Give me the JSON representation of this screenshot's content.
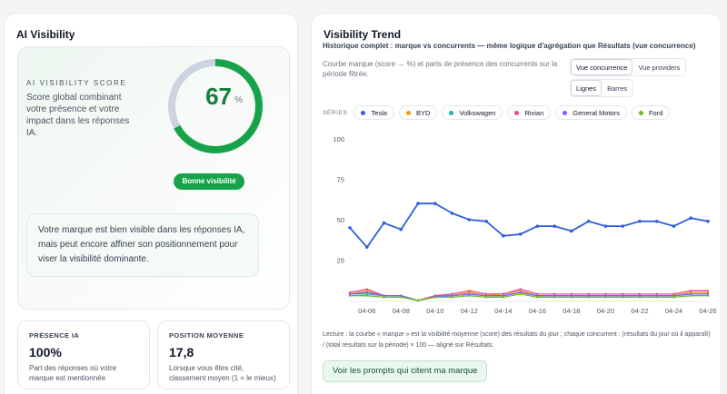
{
  "left": {
    "title": "AI Visibility",
    "score_label": "AI VISIBILITY SCORE",
    "score_desc": "Score global combinant votre présence et votre impact dans les réponses IA.",
    "score_value": 67,
    "score_unit": "%",
    "badge": "Bonne visibilité",
    "note": "Votre marque est bien visible dans les réponses IA, mais peut encore affiner son positionnement pour viser la visibilité dominante.",
    "stats": [
      {
        "title": "PRÉSENCE IA",
        "value": "100%",
        "desc": "Part des réponses où votre marque est mentionnée"
      },
      {
        "title": "POSITION MOYENNE",
        "value": "17,8",
        "desc": "Lorsque vous êtes cité, classement moyen (1 = le mieux)"
      }
    ]
  },
  "right": {
    "title": "Visibility Trend",
    "subtitle": "Historique complet : marque vs concurrents — même logique d'agrégation que Résultats (vue concurrence)",
    "helper": "Courbe marque (score → %) et parts de présence des concurrents sur la période filtrée.",
    "view_buttons": [
      "Vue concurrence",
      "Vue providers"
    ],
    "type_buttons": [
      "Lignes",
      "Barres"
    ],
    "series_title": "SÉRIES",
    "series_chips": [
      {
        "name": "Tesla",
        "color": "#2f5fd9"
      },
      {
        "name": "BYD",
        "color": "#f59e0b"
      },
      {
        "name": "Volkswagen",
        "color": "#14b8a6"
      },
      {
        "name": "Rivian",
        "color": "#ec4899"
      },
      {
        "name": "General Motors",
        "color": "#8b5cf6"
      },
      {
        "name": "Ford",
        "color": "#65c21a"
      }
    ],
    "lecture": "Lecture : la courbe « marque » est la visibilité moyenne (score) des résultats du jour ; chaque concurrent : (résultats du jour où il apparaît) / (total résultats sur la période) × 100 — aligné sur Résultats.",
    "cta": "Voir les prompts qui citent ma marque"
  },
  "chart_data": {
    "type": "line",
    "x": [
      "04-05",
      "04-06",
      "04-07",
      "04-08",
      "04-09",
      "04-10",
      "04-11",
      "04-12",
      "04-13",
      "04-14",
      "04-15",
      "04-16",
      "04-17",
      "04-18",
      "04-19",
      "04-20",
      "04-21",
      "04-22",
      "04-23",
      "04-24",
      "04-25",
      "04-26"
    ],
    "xticks": [
      "04-06",
      "04-08",
      "04-10",
      "04-12",
      "04-14",
      "04-16",
      "04-18",
      "04-20",
      "04-22",
      "04-24",
      "04-26"
    ],
    "ylim": [
      0,
      100
    ],
    "yticks": [
      25,
      50,
      75,
      100
    ],
    "grid": false,
    "series": [
      {
        "name": "Tesla",
        "color": "#2f5fd9",
        "values": [
          45,
          33,
          48,
          44,
          60,
          60,
          54,
          50,
          49,
          40,
          41,
          46,
          46,
          43,
          49,
          46,
          46,
          49,
          49,
          46,
          51,
          49
        ]
      },
      {
        "name": "BYD",
        "color": "#f59e0b",
        "values": [
          4,
          6,
          3,
          3,
          0,
          3,
          3,
          5,
          3,
          4,
          6,
          3,
          3,
          3,
          3,
          3,
          3,
          3,
          3,
          3,
          5,
          5
        ]
      },
      {
        "name": "Volkswagen",
        "color": "#14b8a6",
        "values": [
          4,
          4,
          3,
          3,
          0,
          3,
          3,
          4,
          3,
          3,
          5,
          3,
          3,
          3,
          3,
          3,
          3,
          3,
          3,
          3,
          4,
          4
        ]
      },
      {
        "name": "Rivian",
        "color": "#ec4899",
        "values": [
          5,
          7,
          3,
          3,
          0,
          3,
          4,
          6,
          4,
          4,
          7,
          4,
          4,
          4,
          4,
          4,
          4,
          4,
          4,
          4,
          6,
          6
        ]
      },
      {
        "name": "General Motors",
        "color": "#8b5cf6",
        "values": [
          4,
          5,
          3,
          3,
          0,
          2,
          3,
          4,
          3,
          3,
          5,
          3,
          3,
          3,
          3,
          3,
          3,
          3,
          3,
          3,
          4,
          4
        ]
      },
      {
        "name": "Ford",
        "color": "#65c21a",
        "values": [
          3,
          3,
          2,
          2,
          0,
          2,
          2,
          3,
          2,
          2,
          4,
          2,
          2,
          2,
          2,
          2,
          2,
          2,
          2,
          2,
          3,
          3
        ]
      }
    ]
  }
}
